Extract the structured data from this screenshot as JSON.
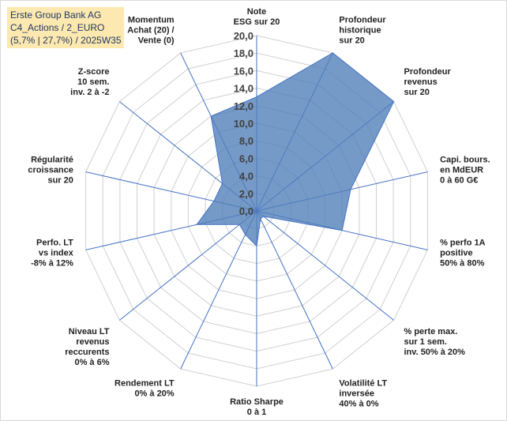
{
  "title": {
    "line1": "Erste Group Bank AG",
    "line2": "C4_Actions / 2_EURO",
    "line3": "(5,7% | 27,7%) / 2025W35"
  },
  "chart_data": {
    "type": "radar",
    "rmin": 0,
    "rmax": 20,
    "tick_step": 2,
    "tick_labels": [
      "0,0",
      "2,0",
      "4,0",
      "6,0",
      "8,0",
      "10,0",
      "12,0",
      "14,0",
      "16,0",
      "18,0",
      "20,0"
    ],
    "fill_color": "#4f7db8",
    "line_color": "#4472c4",
    "axes": [
      {
        "label": [
          "Note",
          "ESG sur 20"
        ],
        "value": 13.0
      },
      {
        "label": [
          "Profondeur",
          "historique",
          "sur 20"
        ],
        "value": 20.0
      },
      {
        "label": [
          "Profondeur",
          "revenus",
          "sur 20"
        ],
        "value": 20.0
      },
      {
        "label": [
          "Capi. bours.",
          "en MdEUR",
          "0 à 60 G€"
        ],
        "value": 11.0
      },
      {
        "label": [
          "% perfo 1A",
          "positive",
          "50% à 80%"
        ],
        "value": 10.0
      },
      {
        "label": [
          "% perte max.",
          "sur 1 sem.",
          "inv. 50% à 20%"
        ],
        "value": 1.0
      },
      {
        "label": [
          "Volatilité LT",
          "inversée",
          "40% à 0%"
        ],
        "value": 1.0
      },
      {
        "label": [
          "Ratio Sharpe",
          "0 à 1"
        ],
        "value": 4.0
      },
      {
        "label": [
          "Rendement LT",
          "0% à 20%"
        ],
        "value": 3.0
      },
      {
        "label": [
          "Niveau LT",
          "revenus",
          "reccurents",
          "0% à 6%"
        ],
        "value": 2.5
      },
      {
        "label": [
          "Perfo. LT",
          "vs index",
          "-8% à 12%"
        ],
        "value": 7.0
      },
      {
        "label": [
          "Régularité",
          "croissance",
          "sur 20"
        ],
        "value": 5.0
      },
      {
        "label": [
          "Z-score",
          "10 sem.",
          "inv. 2 à -2"
        ],
        "value": 5.0
      },
      {
        "label": [
          "Momentum",
          "Achat (20) /",
          "Vente (0)"
        ],
        "value": 12.0
      }
    ]
  }
}
